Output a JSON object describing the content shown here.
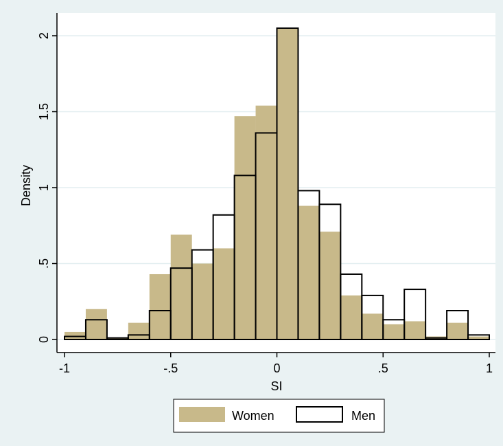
{
  "colors": {
    "background": "#eaf2f3",
    "plot_background": "#ffffff",
    "gridline": "#e3eef0",
    "women_fill": "#c8b98a",
    "men_stroke": "#000000"
  },
  "chart_data": {
    "type": "bar",
    "subtype": "overlaid-histogram",
    "title": "",
    "xlabel": "SI",
    "ylabel": "Density",
    "xlim": [
      -1,
      1
    ],
    "ylim": [
      0,
      2.05
    ],
    "xticks": [
      -1,
      -0.5,
      0,
      0.5,
      1
    ],
    "xtick_labels": [
      "-1",
      "-.5",
      "0",
      ".5",
      "1"
    ],
    "yticks": [
      0,
      0.5,
      1,
      1.5,
      2
    ],
    "ytick_labels": [
      "0",
      ".5",
      "1",
      "1.5",
      "2"
    ],
    "grid": true,
    "legend_position": "bottom",
    "series": [
      {
        "name": "Women",
        "style": "filled",
        "bins": [
          {
            "x0": -1.0,
            "x1": -0.9,
            "value": 0.05
          },
          {
            "x0": -0.9,
            "x1": -0.8,
            "value": 0.2
          },
          {
            "x0": -0.8,
            "x1": -0.7,
            "value": 0.01
          },
          {
            "x0": -0.7,
            "x1": -0.6,
            "value": 0.11
          },
          {
            "x0": -0.6,
            "x1": -0.5,
            "value": 0.43
          },
          {
            "x0": -0.5,
            "x1": -0.4,
            "value": 0.69
          },
          {
            "x0": -0.4,
            "x1": -0.3,
            "value": 0.5
          },
          {
            "x0": -0.3,
            "x1": -0.2,
            "value": 0.6
          },
          {
            "x0": -0.2,
            "x1": -0.1,
            "value": 1.47
          },
          {
            "x0": -0.1,
            "x1": 0.0,
            "value": 1.54
          },
          {
            "x0": 0.0,
            "x1": 0.1,
            "value": 2.05
          },
          {
            "x0": 0.1,
            "x1": 0.2,
            "value": 0.88
          },
          {
            "x0": 0.2,
            "x1": 0.3,
            "value": 0.71
          },
          {
            "x0": 0.3,
            "x1": 0.4,
            "value": 0.29
          },
          {
            "x0": 0.4,
            "x1": 0.5,
            "value": 0.17
          },
          {
            "x0": 0.5,
            "x1": 0.6,
            "value": 0.1
          },
          {
            "x0": 0.6,
            "x1": 0.7,
            "value": 0.12
          },
          {
            "x0": 0.7,
            "x1": 0.8,
            "value": 0.02
          },
          {
            "x0": 0.8,
            "x1": 0.9,
            "value": 0.11
          },
          {
            "x0": 0.9,
            "x1": 1.0,
            "value": 0.02
          }
        ]
      },
      {
        "name": "Men",
        "style": "outline",
        "bins": [
          {
            "x0": -1.0,
            "x1": -0.9,
            "value": 0.02
          },
          {
            "x0": -0.9,
            "x1": -0.8,
            "value": 0.13
          },
          {
            "x0": -0.8,
            "x1": -0.7,
            "value": 0.01
          },
          {
            "x0": -0.7,
            "x1": -0.6,
            "value": 0.03
          },
          {
            "x0": -0.6,
            "x1": -0.5,
            "value": 0.19
          },
          {
            "x0": -0.5,
            "x1": -0.4,
            "value": 0.47
          },
          {
            "x0": -0.4,
            "x1": -0.3,
            "value": 0.59
          },
          {
            "x0": -0.3,
            "x1": -0.2,
            "value": 0.82
          },
          {
            "x0": -0.2,
            "x1": -0.1,
            "value": 1.08
          },
          {
            "x0": -0.1,
            "x1": 0.0,
            "value": 1.36
          },
          {
            "x0": 0.0,
            "x1": 0.1,
            "value": 2.05
          },
          {
            "x0": 0.1,
            "x1": 0.2,
            "value": 0.98
          },
          {
            "x0": 0.2,
            "x1": 0.3,
            "value": 0.89
          },
          {
            "x0": 0.3,
            "x1": 0.4,
            "value": 0.43
          },
          {
            "x0": 0.4,
            "x1": 0.5,
            "value": 0.29
          },
          {
            "x0": 0.5,
            "x1": 0.6,
            "value": 0.13
          },
          {
            "x0": 0.6,
            "x1": 0.7,
            "value": 0.33
          },
          {
            "x0": 0.7,
            "x1": 0.8,
            "value": 0.01
          },
          {
            "x0": 0.8,
            "x1": 0.9,
            "value": 0.19
          },
          {
            "x0": 0.9,
            "x1": 1.0,
            "value": 0.03
          }
        ]
      }
    ]
  }
}
